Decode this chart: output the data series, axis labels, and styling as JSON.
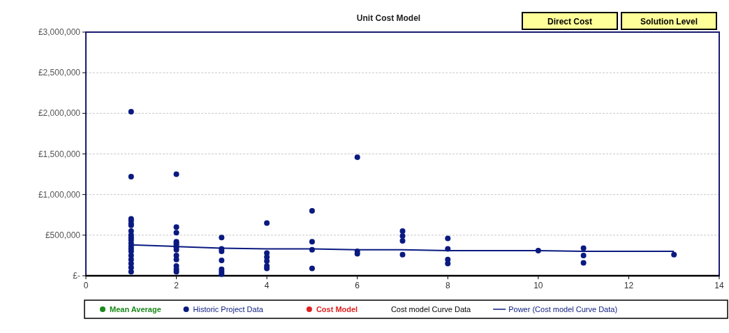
{
  "chart_data": {
    "type": "scatter",
    "title": "Unit Cost Model",
    "annotations": [
      "Direct Cost",
      "Solution Level"
    ],
    "xlim": [
      0,
      14
    ],
    "xticks": [
      0,
      2,
      4,
      6,
      8,
      10,
      12,
      14
    ],
    "ylim": [
      0,
      3000000
    ],
    "yticks": [
      {
        "value": 0,
        "label": "£-"
      },
      {
        "value": 500000,
        "label": "£500,000"
      },
      {
        "value": 1000000,
        "label": "£1,000,000"
      },
      {
        "value": 1500000,
        "label": "£1,500,000"
      },
      {
        "value": 2000000,
        "label": "£2,000,000"
      },
      {
        "value": 2500000,
        "label": "£2,500,000"
      },
      {
        "value": 3000000,
        "label": "£3,000,000"
      }
    ],
    "grid": "y",
    "legend": "bottom",
    "marker": "circle",
    "series": [
      {
        "name": "Mean Average",
        "color": "#1a8a1a"
      },
      {
        "name": "Historic Project Data",
        "color": "#0a1a80",
        "x": [
          1,
          1,
          1,
          1,
          1,
          1,
          1,
          1,
          1,
          1,
          1,
          1,
          1,
          1,
          1,
          1,
          1,
          1,
          1,
          2,
          2,
          2,
          2,
          2,
          2,
          2,
          2,
          2,
          2,
          2,
          2,
          2,
          3,
          3,
          3,
          3,
          3,
          3,
          3,
          4,
          4,
          4,
          4,
          4,
          4,
          5,
          5,
          5,
          5,
          6,
          6,
          6,
          7,
          7,
          7,
          7,
          8,
          8,
          8,
          8,
          10,
          11,
          11,
          11,
          13
        ],
        "values": [
          2020000,
          1220000,
          700000,
          680000,
          640000,
          620000,
          550000,
          500000,
          470000,
          440000,
          400000,
          360000,
          330000,
          300000,
          250000,
          200000,
          150000,
          100000,
          50000,
          1250000,
          600000,
          530000,
          420000,
          400000,
          380000,
          350000,
          320000,
          250000,
          200000,
          120000,
          80000,
          50000,
          470000,
          330000,
          300000,
          190000,
          80000,
          50000,
          20000,
          650000,
          280000,
          230000,
          180000,
          120000,
          90000,
          800000,
          420000,
          320000,
          90000,
          1460000,
          300000,
          270000,
          550000,
          490000,
          430000,
          260000,
          460000,
          330000,
          200000,
          150000,
          310000,
          340000,
          250000,
          160000,
          260000
        ]
      },
      {
        "name": "Cost Model",
        "color": "#e02020"
      },
      {
        "name": "Cost model Curve Data",
        "color": "#000000",
        "type": "line",
        "line_style": "none"
      },
      {
        "name": "Power (Cost model Curve Data)",
        "color": "#0a1a80",
        "type": "line",
        "marker": "none",
        "x": [
          1,
          2,
          3,
          4,
          5,
          6,
          7,
          8,
          9,
          10,
          11,
          12,
          13
        ],
        "values": [
          380000,
          360000,
          340000,
          330000,
          330000,
          320000,
          320000,
          310000,
          310000,
          310000,
          300000,
          300000,
          300000
        ]
      }
    ]
  }
}
